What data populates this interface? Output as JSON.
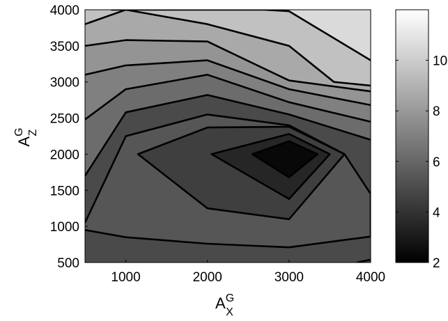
{
  "chart_data": {
    "type": "contour",
    "title": "",
    "xlabel": {
      "base": "A",
      "sup": "G",
      "sub": "X"
    },
    "ylabel": {
      "base": "A",
      "sup": "G",
      "sub": "Z"
    },
    "xlim": [
      500,
      4000
    ],
    "ylim": [
      500,
      4000
    ],
    "x_ticks": [
      "1000",
      "2000",
      "3000",
      "4000"
    ],
    "y_ticks": [
      "500",
      "1000",
      "1500",
      "2000",
      "2500",
      "3000",
      "3500",
      "4000"
    ],
    "colorbar": {
      "range": [
        2,
        12
      ],
      "ticks": [
        "2",
        "4",
        "6",
        "8",
        "10"
      ],
      "colormap": "gray"
    },
    "grid": false,
    "contour_levels": [
      {
        "level": 2.7,
        "color": "#080808",
        "path": [
          [
            3350,
            2000
          ],
          [
            3000,
            2180
          ],
          [
            2550,
            2000
          ],
          [
            3000,
            1680
          ]
        ]
      },
      {
        "level": 3.5,
        "color": "#262626",
        "path": [
          [
            3500,
            2000
          ],
          [
            3000,
            2280
          ],
          [
            2050,
            2000
          ],
          [
            3000,
            1380
          ]
        ]
      },
      {
        "level": 4.7,
        "color": "#3f3f3f",
        "path": [
          [
            3680,
            2000
          ],
          [
            3000,
            2380
          ],
          [
            2000,
            2370
          ],
          [
            1150,
            2000
          ],
          [
            2000,
            1250
          ],
          [
            3000,
            1100
          ]
        ]
      },
      {
        "level": 5.5,
        "color": "#565656",
        "path": [
          [
            500,
            1050
          ],
          [
            1000,
            2250
          ],
          [
            2000,
            2550
          ],
          [
            3000,
            2400
          ],
          [
            3680,
            2000
          ],
          [
            4000,
            1450
          ],
          [
            4000,
            860
          ],
          [
            3000,
            710
          ],
          [
            2000,
            760
          ],
          [
            1000,
            850
          ],
          [
            500,
            950
          ]
        ]
      },
      {
        "level": 6.2,
        "color": "#6c6c6c",
        "path": [
          [
            500,
            1700
          ],
          [
            1000,
            2580
          ],
          [
            2000,
            2820
          ],
          [
            3000,
            2550
          ],
          [
            4000,
            2200
          ]
        ]
      },
      {
        "level": 7.0,
        "color": "#808080",
        "path": [
          [
            500,
            2480
          ],
          [
            1000,
            2900
          ],
          [
            2000,
            3100
          ],
          [
            3000,
            2720
          ],
          [
            4000,
            2450
          ]
        ]
      },
      {
        "level": 7.8,
        "color": "#949494",
        "path": [
          [
            500,
            3100
          ],
          [
            1000,
            3230
          ],
          [
            2000,
            3300
          ],
          [
            3000,
            2900
          ],
          [
            4000,
            2680
          ]
        ]
      },
      {
        "level": 8.7,
        "color": "#a9a9a9",
        "path": [
          [
            500,
            3500
          ],
          [
            1000,
            3580
          ],
          [
            2000,
            3560
          ],
          [
            3000,
            3020
          ],
          [
            4000,
            2870
          ]
        ]
      },
      {
        "level": 9.7,
        "color": "#c1c1c1",
        "path": [
          [
            500,
            3800
          ],
          [
            1000,
            4000
          ],
          [
            2000,
            3800
          ],
          [
            3000,
            3500
          ],
          [
            3550,
            3000
          ],
          [
            4000,
            2950
          ]
        ]
      },
      {
        "level": 10.7,
        "color": "#dadada",
        "path": [
          [
            820,
            4000
          ],
          [
            2000,
            4000
          ],
          [
            2700,
            4000
          ],
          [
            3000,
            3980
          ],
          [
            4000,
            3300
          ]
        ]
      }
    ],
    "low_region_corner": {
      "color": "#4a4a4a",
      "path": [
        [
          3830,
          500
        ],
        [
          4000,
          540
        ],
        [
          4000,
          500
        ]
      ]
    }
  }
}
